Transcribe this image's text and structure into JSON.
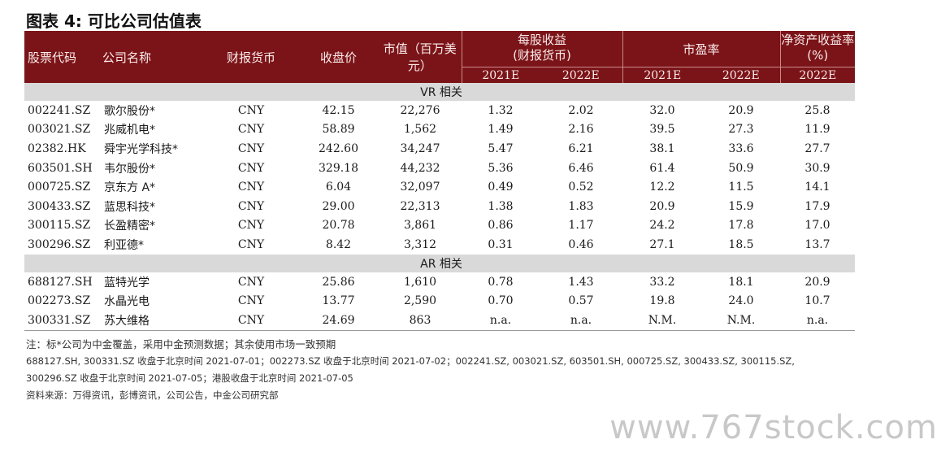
{
  "title": "图表 4: 可比公司估值表",
  "headers": {
    "code": "股票代码",
    "name": "公司名称",
    "currency": "财报货币",
    "close": "收盘价",
    "mktcap_line1": "市值（百万美",
    "mktcap_line2": "元）",
    "eps_line1": "每股收益",
    "eps_line2": "(财报货币)",
    "pe": "市盈率",
    "roe_line1": "净资产收益率",
    "roe_line2": "(%)",
    "years": [
      "2021E",
      "2022E",
      "2021E",
      "2022E",
      "2022E"
    ]
  },
  "sections": [
    {
      "label": "VR 相关",
      "rows": [
        [
          "002241.SZ",
          "歌尔股份*",
          "CNY",
          "42.15",
          "22,276",
          "1.32",
          "2.02",
          "32.0",
          "20.9",
          "25.8"
        ],
        [
          "003021.SZ",
          "兆威机电*",
          "CNY",
          "58.89",
          "1,562",
          "1.49",
          "2.16",
          "39.5",
          "27.3",
          "11.9"
        ],
        [
          "02382.HK",
          "舜宇光学科技*",
          "CNY",
          "242.60",
          "34,247",
          "5.47",
          "6.21",
          "38.1",
          "33.6",
          "27.7"
        ],
        [
          "603501.SH",
          "韦尔股份*",
          "CNY",
          "329.18",
          "44,232",
          "5.36",
          "6.46",
          "61.4",
          "50.9",
          "30.9"
        ],
        [
          "000725.SZ",
          "京东方 A*",
          "CNY",
          "6.04",
          "32,097",
          "0.49",
          "0.52",
          "12.2",
          "11.5",
          "14.1"
        ],
        [
          "300433.SZ",
          "蓝思科技*",
          "CNY",
          "29.00",
          "22,313",
          "1.38",
          "1.83",
          "20.9",
          "15.9",
          "17.9"
        ],
        [
          "300115.SZ",
          "长盈精密*",
          "CNY",
          "20.78",
          "3,861",
          "0.86",
          "1.17",
          "24.2",
          "17.8",
          "17.0"
        ],
        [
          "300296.SZ",
          "利亚德*",
          "CNY",
          "8.42",
          "3,312",
          "0.31",
          "0.46",
          "27.1",
          "18.5",
          "13.7"
        ]
      ]
    },
    {
      "label": "AR 相关",
      "rows": [
        [
          "688127.SH",
          "蓝特光学",
          "CNY",
          "25.86",
          "1,610",
          "0.78",
          "1.43",
          "33.2",
          "18.1",
          "20.9"
        ],
        [
          "002273.SZ",
          "水晶光电",
          "CNY",
          "13.77",
          "2,590",
          "0.70",
          "0.57",
          "19.8",
          "24.0",
          "10.7"
        ],
        [
          "300331.SZ",
          "苏大维格",
          "CNY",
          "24.69",
          "863",
          "n.a.",
          "n.a.",
          "N.M.",
          "N.M.",
          "n.a."
        ]
      ]
    }
  ],
  "notes": {
    "line1": "注：标*公司为中金覆盖，采用中金预测数据；其余使用市场一致预期",
    "line2": "688127.SH, 300331.SZ 收盘于北京时间 2021-07-01；002273.SZ 收盘于北京时间 2021-07-02；002241.SZ, 003021.SZ, 603501.SH, 000725.SZ, 300433.SZ, 300115.SZ,",
    "line3": "300296.SZ 收盘于北京时间 2021-07-05；港股收盘于北京时间 2021-07-05",
    "line4": "资料来源：万得资讯，彭博资讯，公司公告，中金公司研究部"
  },
  "watermark": "www.767stock.com"
}
